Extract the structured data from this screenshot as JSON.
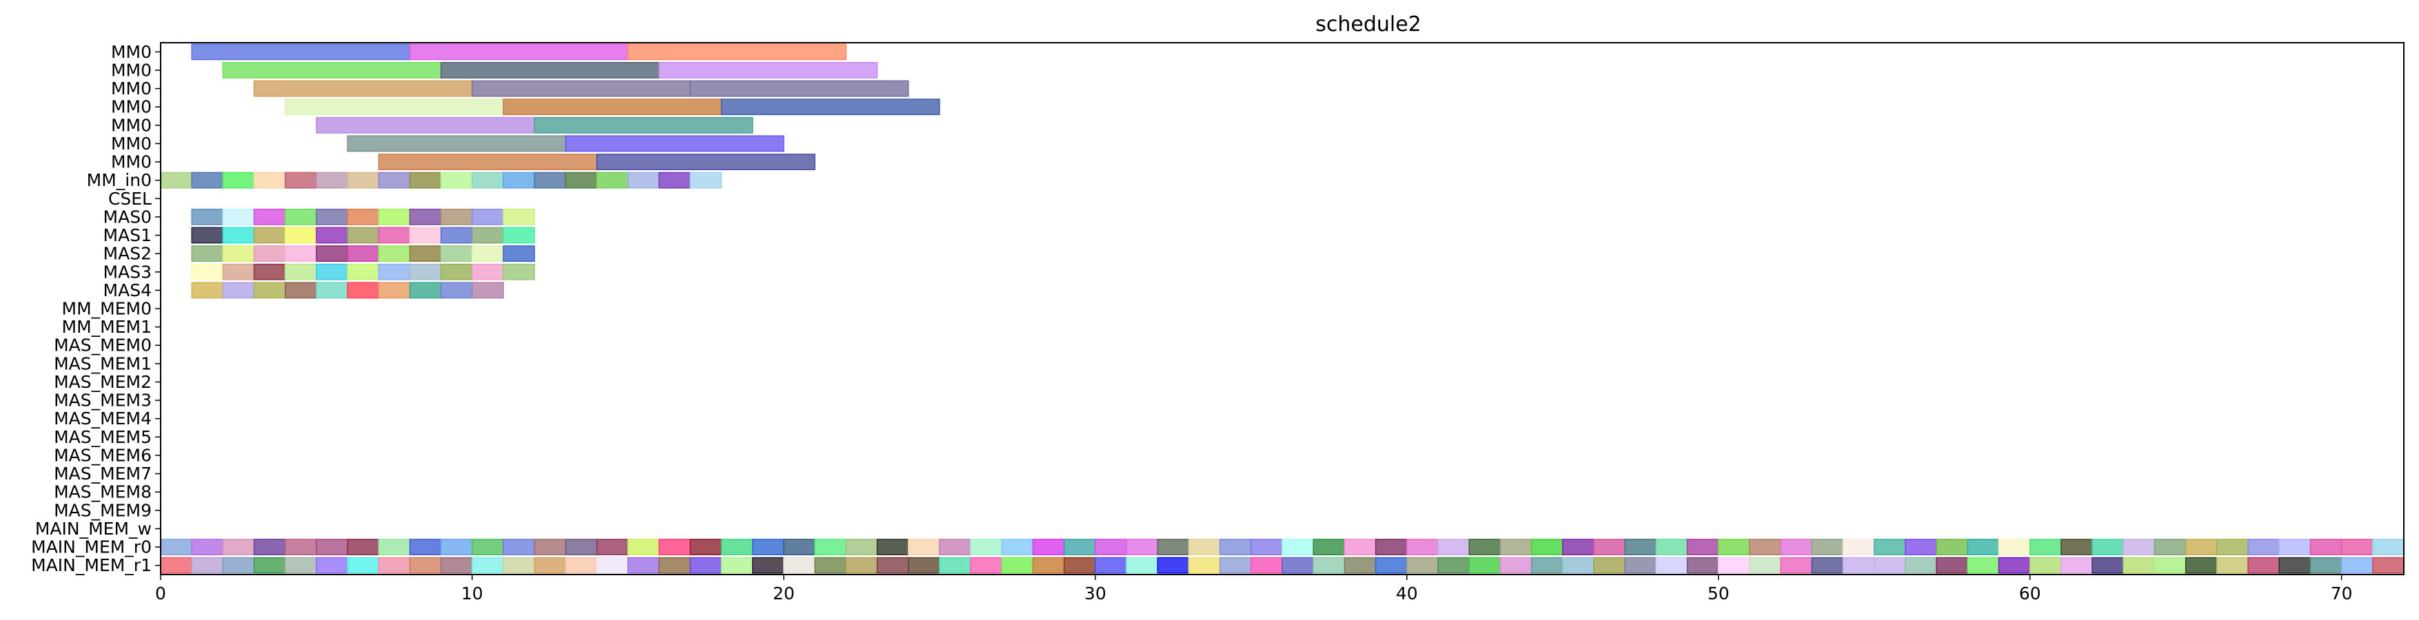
{
  "chart_data": {
    "type": "gantt",
    "title": "schedule2",
    "xlabel": "",
    "ylabel": "",
    "xlim": [
      0,
      72
    ],
    "x_ticks": [
      0,
      10,
      20,
      30,
      40,
      50,
      60,
      70
    ],
    "grid": false,
    "rows": [
      "MM0",
      "MM0",
      "MM0",
      "MM0",
      "MM0",
      "MM0",
      "MM0",
      "MM_in0",
      "CSEL",
      "MAS0",
      "MAS1",
      "MAS2",
      "MAS3",
      "MAS4",
      "MM_MEM0",
      "MM_MEM1",
      "MAS_MEM0",
      "MAS_MEM1",
      "MAS_MEM2",
      "MAS_MEM3",
      "MAS_MEM4",
      "MAS_MEM5",
      "MAS_MEM6",
      "MAS_MEM7",
      "MAS_MEM8",
      "MAS_MEM9",
      "MAIN_MEM_w",
      "MAIN_MEM_r0",
      "MAIN_MEM_r1"
    ],
    "tasks": [
      {
        "row": 0,
        "start": 1,
        "end": 8,
        "color": "#5a6fe0"
      },
      {
        "row": 0,
        "start": 8,
        "end": 15,
        "color": "#e05ae8"
      },
      {
        "row": 0,
        "start": 15,
        "end": 22,
        "color": "#ff8a62"
      },
      {
        "row": 1,
        "start": 2,
        "end": 9,
        "color": "#6ee25a"
      },
      {
        "row": 1,
        "start": 9,
        "end": 16,
        "color": "#4e6272"
      },
      {
        "row": 1,
        "start": 16,
        "end": 23,
        "color": "#c58cf2"
      },
      {
        "row": 2,
        "start": 3,
        "end": 10,
        "color": "#cf9e5c"
      },
      {
        "row": 2,
        "start": 10,
        "end": 17,
        "color": "#7c6f9a"
      },
      {
        "row": 2,
        "start": 17,
        "end": 24,
        "color": "#736e9c"
      },
      {
        "row": 3,
        "start": 4,
        "end": 11,
        "color": "#dcf4b6"
      },
      {
        "row": 3,
        "start": 11,
        "end": 18,
        "color": "#c97c3e"
      },
      {
        "row": 3,
        "start": 18,
        "end": 25,
        "color": "#3d5ea9"
      },
      {
        "row": 4,
        "start": 5,
        "end": 12,
        "color": "#b98ae6"
      },
      {
        "row": 4,
        "start": 12,
        "end": 19,
        "color": "#47a094"
      },
      {
        "row": 5,
        "start": 6,
        "end": 13,
        "color": "#77948e"
      },
      {
        "row": 5,
        "start": 13,
        "end": 20,
        "color": "#6656f0"
      },
      {
        "row": 6,
        "start": 7,
        "end": 14,
        "color": "#cd7e47"
      },
      {
        "row": 6,
        "start": 14,
        "end": 21,
        "color": "#4c4fa0"
      },
      {
        "row": 7,
        "start": 0,
        "end": 1,
        "color": "#a7d17e"
      },
      {
        "row": 7,
        "start": 1,
        "end": 2,
        "color": "#4a75b0"
      },
      {
        "row": 7,
        "start": 2,
        "end": 3,
        "color": "#4df05a"
      },
      {
        "row": 7,
        "start": 3,
        "end": 4,
        "color": "#f7d5a4"
      },
      {
        "row": 7,
        "start": 4,
        "end": 5,
        "color": "#c25c70"
      },
      {
        "row": 7,
        "start": 5,
        "end": 6,
        "color": "#b897b0"
      },
      {
        "row": 7,
        "start": 6,
        "end": 7,
        "color": "#d7b88a"
      },
      {
        "row": 7,
        "start": 7,
        "end": 8,
        "color": "#8c87c8"
      },
      {
        "row": 7,
        "start": 8,
        "end": 9,
        "color": "#8c8a3e"
      },
      {
        "row": 7,
        "start": 9,
        "end": 10,
        "color": "#b2f68e"
      },
      {
        "row": 7,
        "start": 10,
        "end": 11,
        "color": "#86d4bc"
      },
      {
        "row": 7,
        "start": 11,
        "end": 12,
        "color": "#5aa4ea"
      },
      {
        "row": 7,
        "start": 12,
        "end": 13,
        "color": "#4d6fa2"
      },
      {
        "row": 7,
        "start": 13,
        "end": 14,
        "color": "#4e7a3c"
      },
      {
        "row": 7,
        "start": 14,
        "end": 15,
        "color": "#6cd050"
      },
      {
        "row": 7,
        "start": 15,
        "end": 16,
        "color": "#9aaee2"
      },
      {
        "row": 7,
        "start": 16,
        "end": 17,
        "color": "#7a39c0"
      },
      {
        "row": 7,
        "start": 17,
        "end": 18,
        "color": "#a2d4ee"
      },
      {
        "row": 9,
        "start": 1,
        "end": 2,
        "color": "#5e8ebc"
      },
      {
        "row": 9,
        "start": 2,
        "end": 3,
        "color": "#c4f2fa"
      },
      {
        "row": 9,
        "start": 3,
        "end": 4,
        "color": "#d64be0"
      },
      {
        "row": 9,
        "start": 4,
        "end": 5,
        "color": "#68e25a"
      },
      {
        "row": 9,
        "start": 5,
        "end": 6,
        "color": "#6e6ca4"
      },
      {
        "row": 9,
        "start": 6,
        "end": 7,
        "color": "#e27c4a"
      },
      {
        "row": 9,
        "start": 7,
        "end": 8,
        "color": "#a6f75a"
      },
      {
        "row": 9,
        "start": 8,
        "end": 9,
        "color": "#7c4aa0"
      },
      {
        "row": 9,
        "start": 9,
        "end": 10,
        "color": "#a8906e"
      },
      {
        "row": 9,
        "start": 10,
        "end": 11,
        "color": "#8a8ce8"
      },
      {
        "row": 9,
        "start": 11,
        "end": 12,
        "color": "#cff27c"
      },
      {
        "row": 10,
        "start": 1,
        "end": 2,
        "color": "#262544"
      },
      {
        "row": 10,
        "start": 2,
        "end": 3,
        "color": "#2ee8d8"
      },
      {
        "row": 10,
        "start": 3,
        "end": 4,
        "color": "#b4a44e"
      },
      {
        "row": 10,
        "start": 4,
        "end": 5,
        "color": "#f2f75c"
      },
      {
        "row": 10,
        "start": 5,
        "end": 6,
        "color": "#8c2cb8"
      },
      {
        "row": 10,
        "start": 6,
        "end": 7,
        "color": "#9b9e58"
      },
      {
        "row": 10,
        "start": 7,
        "end": 8,
        "color": "#e454a8"
      },
      {
        "row": 10,
        "start": 8,
        "end": 9,
        "color": "#fcc2d8"
      },
      {
        "row": 10,
        "start": 9,
        "end": 10,
        "color": "#5a70d2"
      },
      {
        "row": 10,
        "start": 10,
        "end": 11,
        "color": "#86a872"
      },
      {
        "row": 10,
        "start": 11,
        "end": 12,
        "color": "#3bf0a0"
      },
      {
        "row": 11,
        "start": 1,
        "end": 2,
        "color": "#86b074"
      },
      {
        "row": 11,
        "start": 2,
        "end": 3,
        "color": "#dcf274"
      },
      {
        "row": 11,
        "start": 3,
        "end": 4,
        "color": "#e898b8"
      },
      {
        "row": 11,
        "start": 4,
        "end": 5,
        "color": "#f7aedc"
      },
      {
        "row": 11,
        "start": 5,
        "end": 6,
        "color": "#8c2a76"
      },
      {
        "row": 11,
        "start": 6,
        "end": 7,
        "color": "#cc3ca8"
      },
      {
        "row": 11,
        "start": 7,
        "end": 8,
        "color": "#9ae860"
      },
      {
        "row": 11,
        "start": 8,
        "end": 9,
        "color": "#8a7c3a"
      },
      {
        "row": 11,
        "start": 9,
        "end": 10,
        "color": "#98cc8c"
      },
      {
        "row": 11,
        "start": 10,
        "end": 11,
        "color": "#e2f4b0"
      },
      {
        "row": 11,
        "start": 11,
        "end": 12,
        "color": "#3a64c8"
      },
      {
        "row": 12,
        "start": 1,
        "end": 2,
        "color": "#fdfab6"
      },
      {
        "row": 12,
        "start": 2,
        "end": 3,
        "color": "#d6a48c"
      },
      {
        "row": 12,
        "start": 3,
        "end": 4,
        "color": "#8e3444"
      },
      {
        "row": 12,
        "start": 4,
        "end": 5,
        "color": "#b8ea8c"
      },
      {
        "row": 12,
        "start": 5,
        "end": 6,
        "color": "#3ccfe8"
      },
      {
        "row": 12,
        "start": 6,
        "end": 7,
        "color": "#c3f76c"
      },
      {
        "row": 12,
        "start": 7,
        "end": 8,
        "color": "#8cb0f4"
      },
      {
        "row": 12,
        "start": 8,
        "end": 9,
        "color": "#9fbccc"
      },
      {
        "row": 12,
        "start": 9,
        "end": 10,
        "color": "#96b050"
      },
      {
        "row": 12,
        "start": 10,
        "end": 11,
        "color": "#f49ccc"
      },
      {
        "row": 12,
        "start": 11,
        "end": 12,
        "color": "#98c878"
      },
      {
        "row": 13,
        "start": 1,
        "end": 2,
        "color": "#d1b34c"
      },
      {
        "row": 13,
        "start": 2,
        "end": 3,
        "color": "#aca2e8"
      },
      {
        "row": 13,
        "start": 3,
        "end": 4,
        "color": "#aab04c"
      },
      {
        "row": 13,
        "start": 4,
        "end": 5,
        "color": "#92604c"
      },
      {
        "row": 13,
        "start": 5,
        "end": 6,
        "color": "#6ed7c2"
      },
      {
        "row": 13,
        "start": 6,
        "end": 7,
        "color": "#fe3e52"
      },
      {
        "row": 13,
        "start": 7,
        "end": 8,
        "color": "#e8975c"
      },
      {
        "row": 13,
        "start": 8,
        "end": 9,
        "color": "#34a88c"
      },
      {
        "row": 13,
        "start": 9,
        "end": 10,
        "color": "#6a7cd4"
      },
      {
        "row": 13,
        "start": 10,
        "end": 11,
        "color": "#b17ca4"
      }
    ],
    "memory_rows": {
      "r0_row": 27,
      "r0_colors": [
        "#7ea4d8",
        "#b068e4",
        "#d894b8",
        "#6a3c9c",
        "#b85c84",
        "#a84c84",
        "#8a2c4c",
        "#96e8a0",
        "#3c5cd4",
        "#64a4ee",
        "#4cc05c",
        "#6c7ce0",
        "#a06a6c",
        "#6c5a88",
        "#94365c",
        "#cdf25c",
        "#ff3a78",
        "#8a1c2c",
        "#3cd880",
        "#2c64d2",
        "#345c84",
        "#54ec7c",
        "#9cc07c",
        "#2c3424",
        "#f8d2ac",
        "#c47cb4",
        "#a0f4c8",
        "#7ec8fa",
        "#d634ea",
        "#3ca4a4",
        "#d04ce4",
        "#e06ce6",
        "#5a6658",
        "#e4d290",
        "#7c8cda",
        "#8476e8",
        "#a2fcf2",
        "#2c8c3c",
        "#f48cd4",
        "#7c2c64",
        "#e46cd0",
        "#c8a8ec",
        "#3c6a34",
        "#9ca07c",
        "#3cd434",
        "#7c2aa4",
        "#d2509c",
        "#447484",
        "#64dca0",
        "#a43ca0",
        "#6ed842",
        "#b47c64",
        "#e06ed8",
        "#8ea084",
        "#f8eae2",
        "#44b4a0",
        "#7c4aec",
        "#6ebc44",
        "#30b0a0",
        "#f8f4c4",
        "#4ae474",
        "#4c4c2c",
        "#3ed4a4",
        "#c4b0e4",
        "#7ca474",
        "#c8ac4c",
        "#a0b450",
        "#8a8ae4",
        "#b0b4fc",
        "#e050ac",
        "#e454a4",
        "#94d2ea"
      ],
      "r1_row": 28,
      "r1_colors": [
        "#f05c68",
        "#b8a0d4",
        "#7c9cc4",
        "#3c9c4c",
        "#a0b4a4",
        "#8e6ef8",
        "#4cf0e8",
        "#f08ca8",
        "#d07c5c",
        "#9a6878",
        "#7cf0e8",
        "#c8d49c",
        "#d49c5c",
        "#f8c4a8",
        "#eee4f8",
        "#9c6ce4",
        "#8c6a3c",
        "#6c44e4",
        "#b1f48e",
        "#2c1c2c",
        "#e8e4dc",
        "#6c8444",
        "#ae9c50",
        "#7c3c44",
        "#5c442c",
        "#4cdcac",
        "#f85cb4",
        "#6ef04c",
        "#c4782c",
        "#8c3418",
        "#4c4cf4",
        "#8cf4dc",
        "#0c0cf4",
        "#f2e26c",
        "#8c9cd4",
        "#f84cb4",
        "#5c5cc4",
        "#8cccac",
        "#7c7c5c",
        "#2c64d4",
        "#9c9c7c",
        "#4c8c4c",
        "#3ccc3c",
        "#dc8cd4",
        "#5c9c9c",
        "#8cbcd4",
        "#a0a04c",
        "#7c7c9c",
        "#ccccfc",
        "#7c4c7c",
        "#fcccfc",
        "#c0e4bc",
        "#ec60bc",
        "#4c4c8c",
        "#c4acec",
        "#c4acec",
        "#8cc0ac",
        "#7c2c5c",
        "#6cf05c",
        "#7c1cbc",
        "#acdc6c",
        "#e8a0e8",
        "#3c2c7c",
        "#b4dc6c",
        "#a4f07c",
        "#2c4c1c",
        "#c4c46c",
        "#bc3c6c",
        "#2c2c2c",
        "#4c8c8c",
        "#7cb0f8",
        "#c84c5c"
      ]
    }
  }
}
